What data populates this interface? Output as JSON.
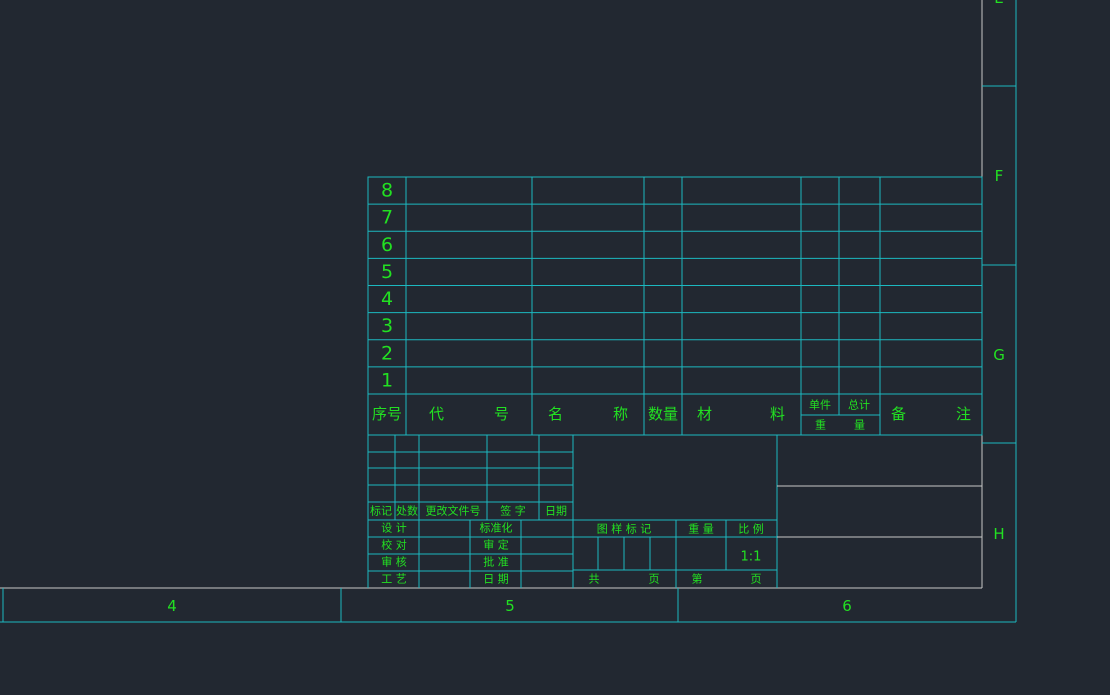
{
  "zones_right": [
    "E",
    "F",
    "G",
    "H"
  ],
  "zones_bottom": [
    "4",
    "5",
    "6"
  ],
  "parts_list": {
    "row_numbers": [
      "8",
      "7",
      "6",
      "5",
      "4",
      "3",
      "2",
      "1"
    ],
    "header": {
      "index": "序号",
      "code": "代 号",
      "name": "名 称",
      "quantity": "数量",
      "material": "材 料",
      "unit": "单件",
      "total": "总计",
      "weight": "重 量",
      "remarks": "备 注"
    }
  },
  "title_block": {
    "revision_header": [
      "标记",
      "处数",
      "更改文件号",
      "签 字",
      "日期"
    ],
    "roles": [
      "设 计",
      "校 对",
      "审 核",
      "工 艺"
    ],
    "approvals": [
      "标准化",
      "审 定",
      "批 准",
      "日 期"
    ],
    "drawing_mark": "图 样 标 记",
    "weight": "重 量",
    "scale_label": "比 例",
    "scale": "1:1",
    "total_label": "共",
    "page_label": "页",
    "sheet_label": "第",
    "sheet_page_label": "页"
  }
}
